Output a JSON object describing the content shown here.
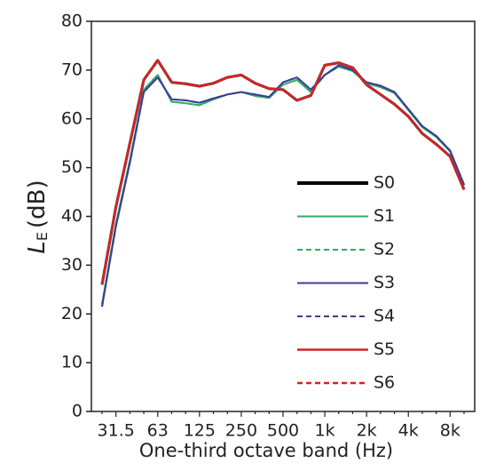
{
  "chart_data": {
    "type": "line",
    "y_label": {
      "symbol": "L",
      "subscript": "E",
      "unit": "(dB)"
    },
    "x_label": "One-third octave band (Hz)",
    "categories": [
      null,
      "31.5",
      null,
      null,
      "63",
      null,
      null,
      "125",
      null,
      null,
      "250",
      null,
      null,
      "500",
      null,
      null,
      "1k",
      null,
      null,
      "2k",
      null,
      null,
      "4k",
      null,
      null,
      "8k",
      null
    ],
    "ylim": [
      0,
      80
    ],
    "yticks": [
      0,
      10,
      20,
      30,
      40,
      50,
      60,
      70,
      80
    ],
    "legend": "lower right",
    "series": [
      {
        "name": "S0",
        "color": "#000000",
        "dash": false,
        "width": 3,
        "values": [
          26,
          42,
          55,
          68,
          72,
          67.5,
          67.2,
          66.7,
          67.3,
          68.5,
          69,
          67.3,
          66.2,
          66,
          63.8,
          64.8,
          71,
          71.5,
          70.5,
          67,
          65,
          63,
          60.5,
          57,
          54.8,
          52.3,
          45.5
        ]
      },
      {
        "name": "S1",
        "color": "#2fae62",
        "dash": false,
        "width": 2,
        "values": [
          22,
          38.5,
          51.5,
          66,
          69,
          63.5,
          63.2,
          62.8,
          64,
          65,
          65.5,
          64.7,
          64.3,
          67,
          68,
          65.5,
          69,
          70.7,
          69.8,
          67.3,
          66.5,
          65.3,
          61.8,
          58.3,
          56.3,
          53.3,
          46.3
        ]
      },
      {
        "name": "S2",
        "color": "#2fae62",
        "dash": true,
        "width": 2,
        "values": [
          22,
          38.5,
          51.5,
          66,
          69,
          63.5,
          63.2,
          62.8,
          64,
          65,
          65.5,
          64.7,
          64.3,
          67,
          68,
          65.5,
          69,
          70.7,
          69.8,
          67.3,
          66.5,
          65.3,
          61.8,
          58.3,
          56.3,
          53.3,
          46.3
        ]
      },
      {
        "name": "S3",
        "color": "#3c3c98",
        "dash": false,
        "width": 2,
        "values": [
          21.5,
          38,
          51,
          65.5,
          68.5,
          64,
          63.8,
          63.3,
          64.2,
          65,
          65.5,
          65,
          64.5,
          67.5,
          68.5,
          66,
          69,
          71,
          70,
          67.5,
          66.8,
          65.5,
          62,
          58.5,
          56.5,
          53.5,
          46.5
        ]
      },
      {
        "name": "S4",
        "color": "#3c3c98",
        "dash": true,
        "width": 2,
        "values": [
          21.5,
          38,
          51,
          65.5,
          68.5,
          64,
          63.8,
          63.3,
          64.2,
          65,
          65.5,
          65,
          64.5,
          67.5,
          68.5,
          66,
          69,
          71,
          70,
          67.5,
          66.8,
          65.5,
          62,
          58.5,
          56.5,
          53.5,
          46.5
        ]
      },
      {
        "name": "S5",
        "color": "#d42424",
        "dash": false,
        "width": 2.5,
        "values": [
          26,
          42,
          55,
          68,
          72,
          67.5,
          67.2,
          66.7,
          67.3,
          68.5,
          69,
          67.3,
          66.2,
          66,
          63.8,
          64.8,
          71,
          71.5,
          70.5,
          67,
          65,
          63,
          60.5,
          57,
          54.8,
          52.3,
          45.5
        ]
      },
      {
        "name": "S6",
        "color": "#d42424",
        "dash": true,
        "width": 2.5,
        "values": [
          26,
          42,
          55,
          68,
          72,
          67.5,
          67.2,
          66.7,
          67.3,
          68.5,
          69,
          67.3,
          66.2,
          66,
          63.8,
          64.8,
          71,
          71.5,
          70.5,
          67,
          65,
          63,
          60.5,
          57,
          54.8,
          52.3,
          45.5
        ]
      }
    ]
  }
}
